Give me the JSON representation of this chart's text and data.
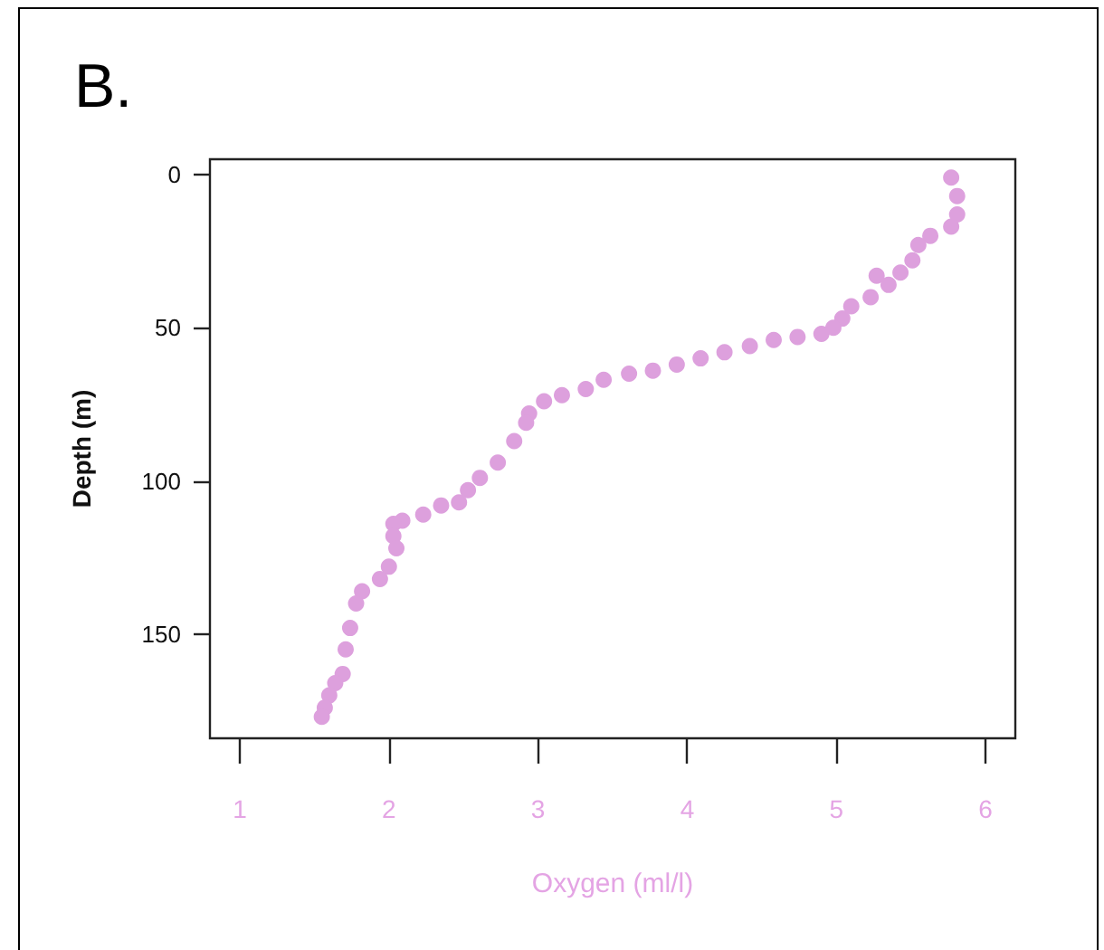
{
  "chart_data": {
    "type": "scatter",
    "title": "B.",
    "xlabel": "Oxygen (ml/l)",
    "ylabel": "Depth (m)",
    "x": [
      5.77,
      5.81,
      5.81,
      5.77,
      5.63,
      5.55,
      5.51,
      5.43,
      5.27,
      5.35,
      5.23,
      5.1,
      5.04,
      4.98,
      4.9,
      4.74,
      4.58,
      4.42,
      4.25,
      4.09,
      3.93,
      3.77,
      3.61,
      3.44,
      3.32,
      3.16,
      3.04,
      2.94,
      2.92,
      2.84,
      2.73,
      2.61,
      2.53,
      2.47,
      2.35,
      2.23,
      2.09,
      2.03,
      2.03,
      2.05,
      2.0,
      1.94,
      1.82,
      1.78,
      1.74,
      1.71,
      1.69,
      1.64,
      1.6,
      1.57,
      1.55
    ],
    "values": [
      1,
      7,
      13,
      17,
      20,
      23,
      28,
      32,
      33,
      36,
      40,
      43,
      47,
      50,
      52,
      53,
      54,
      56,
      58,
      60,
      62,
      64,
      65,
      67,
      70,
      72,
      74,
      78,
      81,
      87,
      94,
      99,
      103,
      107,
      108,
      111,
      113,
      114,
      118,
      122,
      128,
      132,
      136,
      140,
      148,
      155,
      163,
      166,
      170,
      174,
      177
    ],
    "color": "#dda0dd",
    "marker": "circle",
    "xlim": [
      0.8,
      6.2
    ],
    "xticks": [
      1,
      2,
      3,
      4,
      5,
      6
    ],
    "ylim": [
      184,
      -5
    ],
    "yticks": [
      0,
      50,
      100,
      150
    ]
  }
}
